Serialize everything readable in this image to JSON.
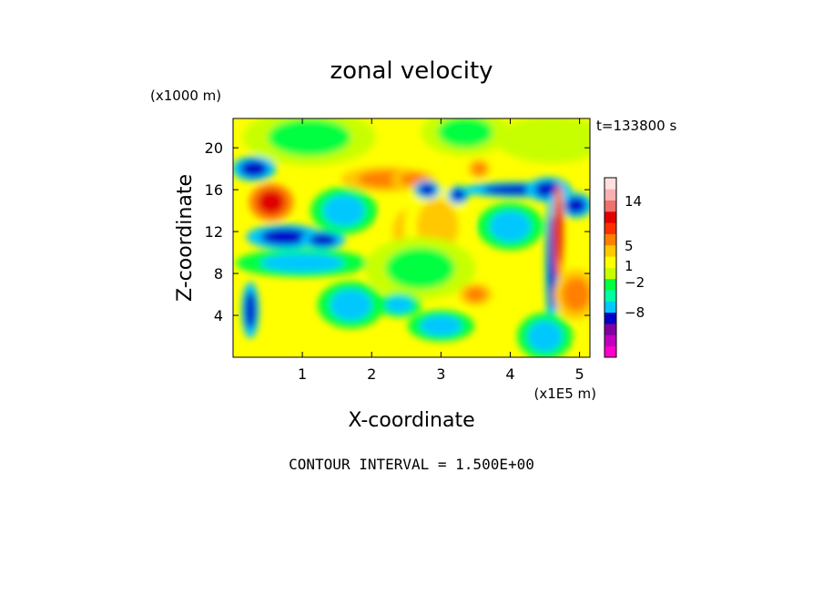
{
  "chart_data": {
    "type": "heatmap",
    "title": "zonal velocity",
    "xlabel": "X-coordinate",
    "ylabel": "Z-coordinate",
    "x_unit": "(x1E5 m)",
    "y_unit": "(x1000 m)",
    "time_label": "t=133800 s",
    "footer": "CONTOUR INTERVAL = 1.500E+00",
    "xlim": [
      0,
      5.15
    ],
    "ylim": [
      0,
      22.8
    ],
    "x_ticks": [
      1,
      2,
      3,
      4,
      5
    ],
    "y_ticks": [
      4,
      8,
      12,
      16,
      20
    ],
    "x_tick_labels": [
      "1",
      "2",
      "3",
      "4",
      "5"
    ],
    "y_tick_labels": [
      "4",
      "8",
      "12",
      "16",
      "20"
    ],
    "grid": false,
    "colorbar": {
      "tick_values": [
        14,
        5,
        1,
        -2,
        -8
      ],
      "tick_labels": [
        "14",
        "5",
        "1",
        "−2",
        "−8"
      ],
      "bands": [
        {
          "color": "#ff00c8"
        },
        {
          "color": "#c000c0"
        },
        {
          "color": "#8000a0"
        },
        {
          "color": "#0000c8"
        },
        {
          "color": "#00c8ff"
        },
        {
          "color": "#00ffa0"
        },
        {
          "color": "#00ff40"
        },
        {
          "color": "#c8ff00"
        },
        {
          "color": "#ffff00"
        },
        {
          "color": "#ffc800"
        },
        {
          "color": "#ff8000"
        },
        {
          "color": "#ff3000"
        },
        {
          "color": "#e00000"
        },
        {
          "color": "#f07070"
        },
        {
          "color": "#f8b0b0"
        },
        {
          "color": "#ffe0e0"
        }
      ]
    },
    "field_colors": {
      "strong_negative": "#0000c8",
      "negative": "#00c8ff",
      "weak_negative": "#00ff40",
      "neutral": "#c8ff00",
      "weak_positive": "#ffff00",
      "positive": "#ffc800",
      "strong_positive": "#ff8000",
      "max_positive": "#e00000"
    },
    "features": [
      {
        "x": 0.25,
        "z": 4.5,
        "kind": "strong_negative",
        "rx": 0.08,
        "rz": 1.8
      },
      {
        "x": 0.3,
        "z": 18,
        "kind": "strong_negative",
        "rx": 0.2,
        "rz": 0.8
      },
      {
        "x": 0.55,
        "z": 14.8,
        "kind": "max_positive",
        "rx": 0.2,
        "rz": 1.2
      },
      {
        "x": 0.75,
        "z": 11.5,
        "kind": "strong_negative",
        "rx": 0.35,
        "rz": 0.8
      },
      {
        "x": 1.3,
        "z": 11.2,
        "kind": "strong_negative",
        "rx": 0.2,
        "rz": 0.6
      },
      {
        "x": 1.0,
        "z": 9,
        "kind": "negative",
        "rx": 0.6,
        "rz": 0.9
      },
      {
        "x": 1.7,
        "z": 5,
        "kind": "negative",
        "rx": 0.3,
        "rz": 1.5
      },
      {
        "x": 1.6,
        "z": 14,
        "kind": "negative",
        "rx": 0.3,
        "rz": 1.5
      },
      {
        "x": 2.2,
        "z": 17,
        "kind": "strong_positive",
        "rx": 0.4,
        "rz": 0.8
      },
      {
        "x": 2.6,
        "z": 17,
        "kind": "strong_positive",
        "rx": 0.2,
        "rz": 0.6
      },
      {
        "x": 2.55,
        "z": 12,
        "kind": "positive",
        "rx": 0.25,
        "rz": 2.2
      },
      {
        "x": 2.95,
        "z": 12.5,
        "kind": "positive",
        "rx": 0.3,
        "rz": 2.6
      },
      {
        "x": 3.25,
        "z": 15.5,
        "kind": "strong_negative",
        "rx": 0.1,
        "rz": 0.6
      },
      {
        "x": 3.55,
        "z": 18,
        "kind": "strong_positive",
        "rx": 0.1,
        "rz": 0.6
      },
      {
        "x": 2.8,
        "z": 16,
        "kind": "strong_negative",
        "rx": 0.12,
        "rz": 0.6
      },
      {
        "x": 2.7,
        "z": 8.5,
        "kind": "weak_negative",
        "rx": 0.5,
        "rz": 2.0
      },
      {
        "x": 2.4,
        "z": 5,
        "kind": "negative",
        "rx": 0.2,
        "rz": 0.8
      },
      {
        "x": 3.0,
        "z": 3,
        "kind": "negative",
        "rx": 0.3,
        "rz": 1.0
      },
      {
        "x": 3.5,
        "z": 6,
        "kind": "strong_positive",
        "rx": 0.15,
        "rz": 0.7
      },
      {
        "x": 4.0,
        "z": 12.5,
        "kind": "negative",
        "rx": 0.3,
        "rz": 1.5
      },
      {
        "x": 4.1,
        "z": 16,
        "kind": "strong_negative",
        "rx": 0.5,
        "rz": 0.5
      },
      {
        "x": 4.55,
        "z": 16,
        "kind": "strong_negative",
        "rx": 0.2,
        "rz": 0.8
      },
      {
        "x": 4.6,
        "z": 9,
        "kind": "strong_negative",
        "rx": 0.06,
        "rz": 4.5
      },
      {
        "x": 4.95,
        "z": 14.5,
        "kind": "strong_negative",
        "rx": 0.15,
        "rz": 0.8
      },
      {
        "x": 4.95,
        "z": 6,
        "kind": "strong_positive",
        "rx": 0.2,
        "rz": 1.6
      },
      {
        "x": 4.5,
        "z": 2,
        "kind": "negative",
        "rx": 0.25,
        "rz": 1.5
      },
      {
        "x": 4.7,
        "z": 12,
        "kind": "max_positive",
        "rx": 0.05,
        "rz": 3.0
      },
      {
        "x": 1.1,
        "z": 21,
        "kind": "weak_negative",
        "rx": 0.6,
        "rz": 1.8
      },
      {
        "x": 3.35,
        "z": 21.5,
        "kind": "weak_negative",
        "rx": 0.4,
        "rz": 1.5
      },
      {
        "x": 4.6,
        "z": 20.8,
        "kind": "neutral",
        "rx": 0.5,
        "rz": 1.5
      }
    ]
  }
}
